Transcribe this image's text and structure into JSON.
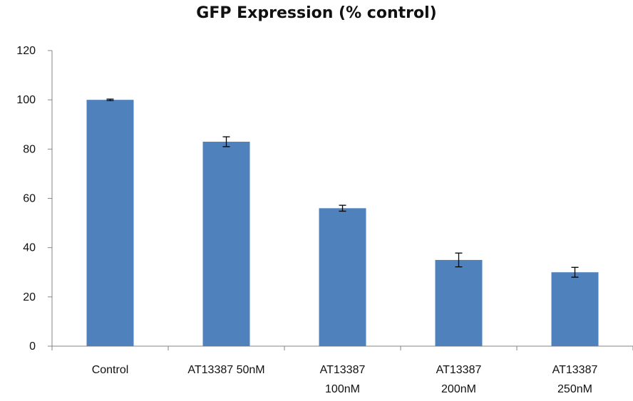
{
  "chart_data": {
    "type": "bar",
    "title": "GFP Expression (% control)",
    "xlabel": "",
    "ylabel": "",
    "categories": [
      [
        "Control"
      ],
      [
        "AT13387 50nM"
      ],
      [
        "AT13387",
        "100nM"
      ],
      [
        "AT13387",
        "200nM"
      ],
      [
        "AT13387",
        "250nM"
      ]
    ],
    "values": [
      100,
      83,
      56,
      35,
      30
    ],
    "errors": [
      0.3,
      2,
      1.2,
      2.8,
      2
    ],
    "ylim": [
      0,
      120
    ],
    "yticks": [
      0,
      20,
      40,
      60,
      80,
      100,
      120
    ],
    "grid": false,
    "bar_color": "#4f81bd"
  }
}
